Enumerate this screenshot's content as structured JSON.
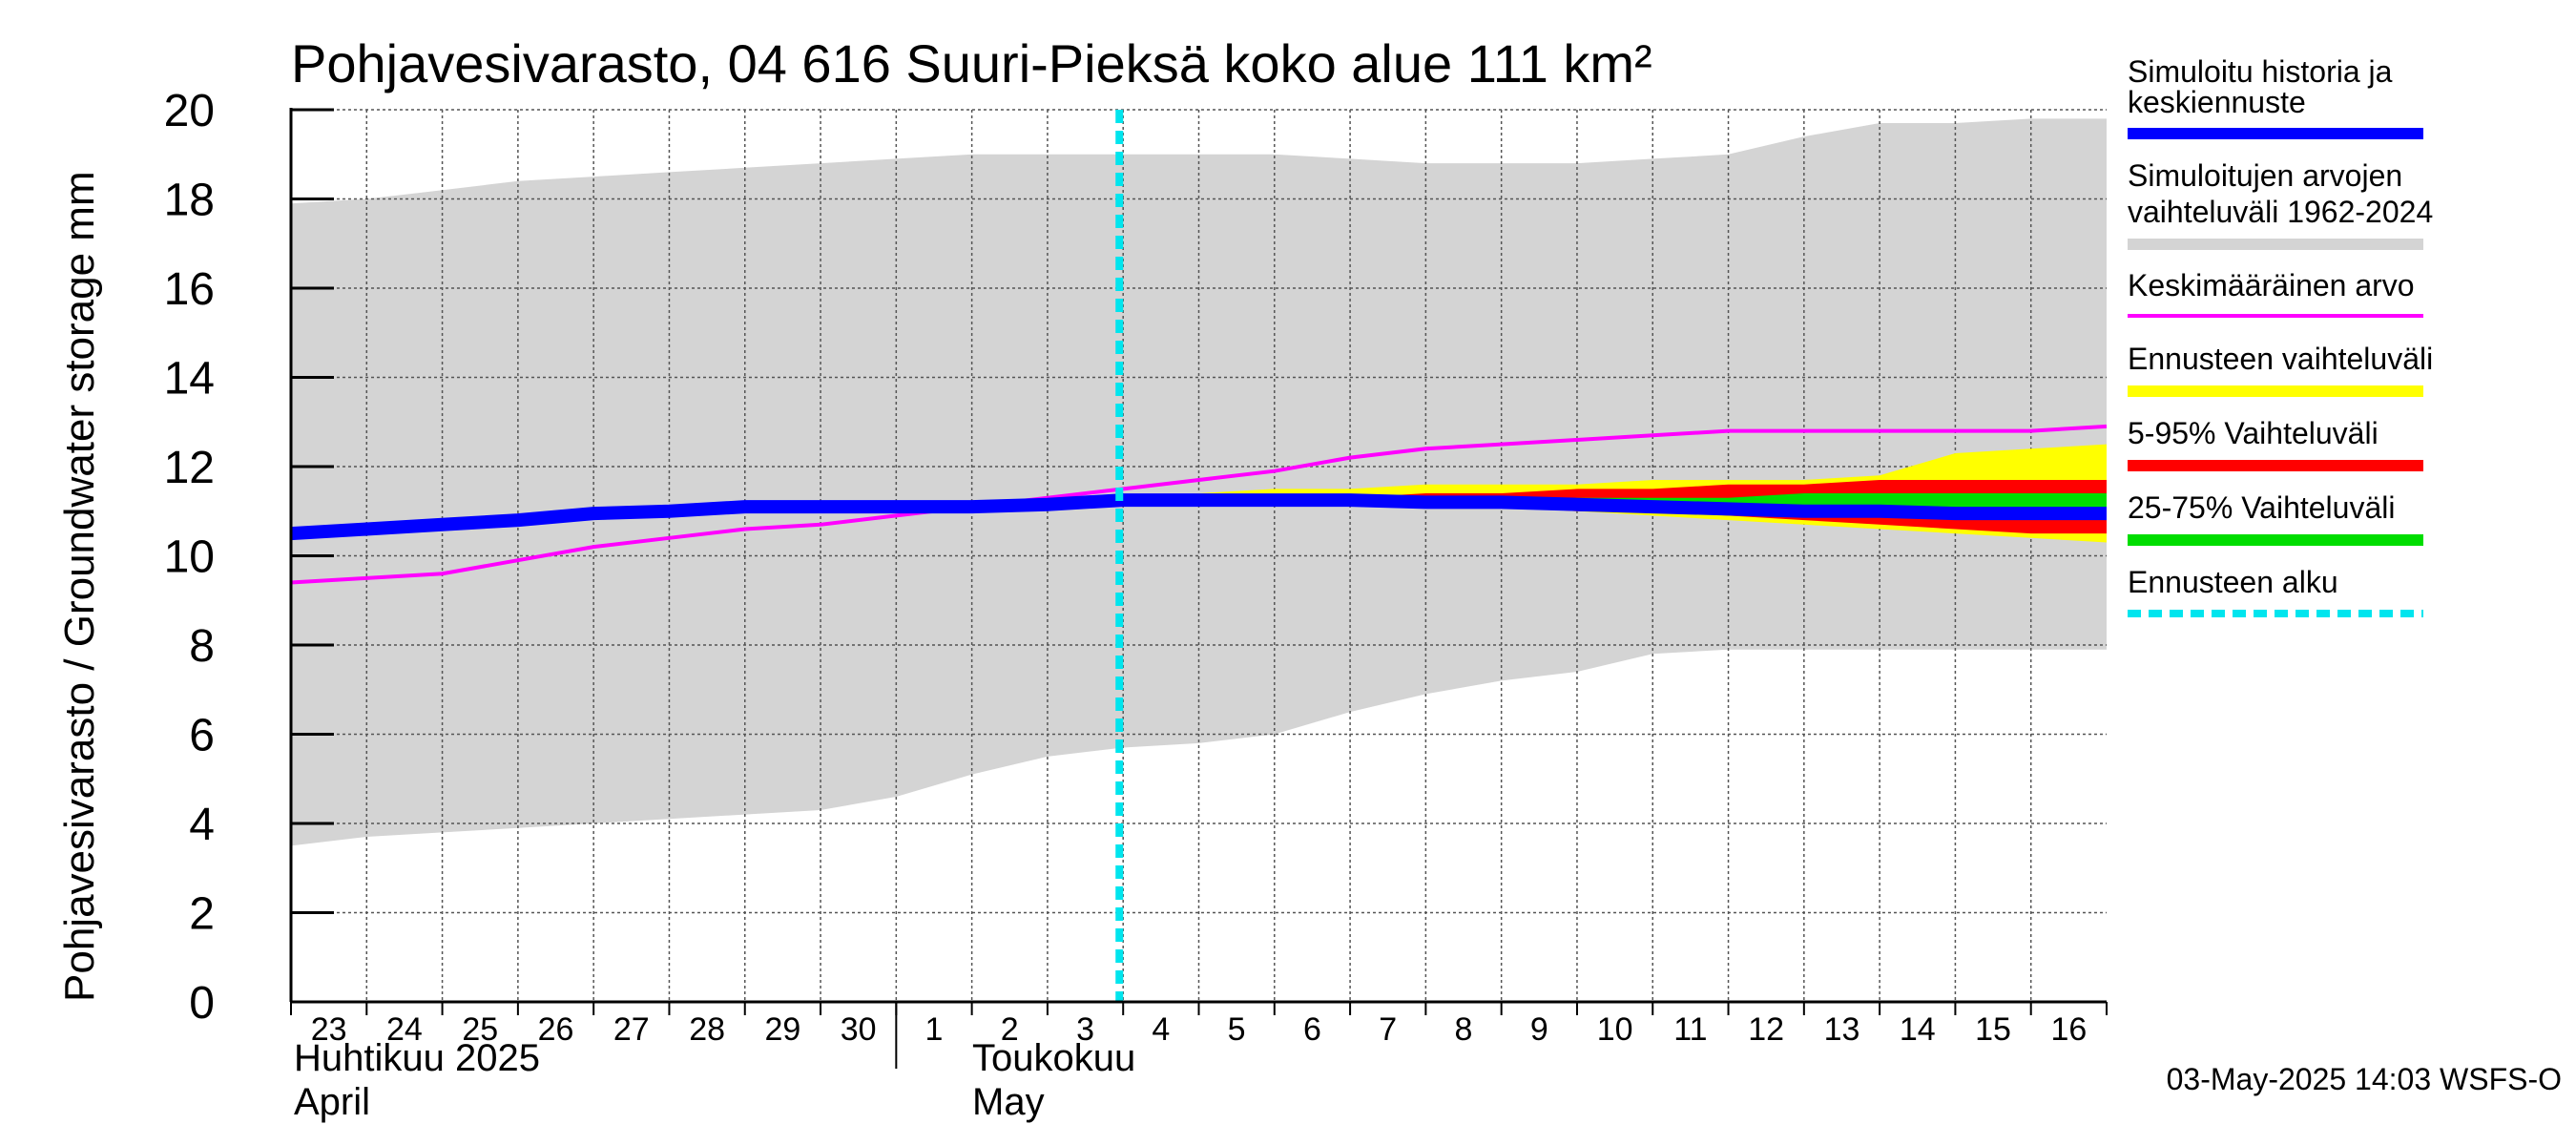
{
  "chart_data": {
    "type": "area",
    "title": "Pohjavesivarasto, 04 616 Suuri-Pieksä koko alue 111 km²",
    "ylabel": "Pohjavesivarasto / Groundwater storage   mm",
    "ylim": [
      0,
      20
    ],
    "yticks": [
      "0",
      "2",
      "4",
      "6",
      "8",
      "10",
      "12",
      "14",
      "16",
      "18",
      "20"
    ],
    "x_day_labels": [
      "23",
      "24",
      "25",
      "26",
      "27",
      "28",
      "29",
      "30",
      "1",
      "2",
      "3",
      "4",
      "5",
      "6",
      "7",
      "8",
      "9",
      "10",
      "11",
      "12",
      "13",
      "14",
      "15",
      "16"
    ],
    "months": [
      {
        "line1": "Huhtikuu  2025",
        "line2": "April"
      },
      {
        "line1": "Toukokuu",
        "line2": "May"
      }
    ],
    "grid": true,
    "colors": {
      "history": "#0000ff",
      "range": "#d4d4d4",
      "mean": "#ff00ff",
      "forecast_range": "#ffff00",
      "p5_95": "#ff0000",
      "p25_75": "#00dd00",
      "forecast_start": "#00e5ee"
    },
    "legend": {
      "placement": "right",
      "items": [
        {
          "key": "history",
          "line1": "Simuloitu historia ja",
          "line2": "keskiennuste"
        },
        {
          "key": "range",
          "line1": "Simuloitujen arvojen",
          "line2": "vaihteluväli 1962-2024"
        },
        {
          "key": "mean",
          "line1": "Keskimääräinen arvo",
          "line2": ""
        },
        {
          "key": "forecast_range",
          "line1": "Ennusteen vaihteluväli",
          "line2": ""
        },
        {
          "key": "p5_95",
          "line1": "5-95% Vaihteluväli",
          "line2": ""
        },
        {
          "key": "p25_75",
          "line1": "25-75% Vaihteluväli",
          "line2": ""
        },
        {
          "key": "forecast_start",
          "line1": "Ennusteen alku",
          "line2": ""
        }
      ]
    },
    "forecast_start_day": 10.95,
    "series": {
      "range": {
        "x": [
          0,
          1,
          2,
          3,
          4,
          5,
          6,
          7,
          8,
          9,
          10,
          11,
          12,
          13,
          14,
          15,
          16,
          17,
          18,
          19,
          20,
          21,
          22,
          23,
          24
        ],
        "upper": [
          17.9,
          18.0,
          18.2,
          18.4,
          18.5,
          18.6,
          18.7,
          18.8,
          18.9,
          19.0,
          19.0,
          19.0,
          19.0,
          19.0,
          18.9,
          18.8,
          18.8,
          18.8,
          18.9,
          19.0,
          19.4,
          19.7,
          19.7,
          19.8,
          19.8
        ],
        "lower": [
          3.5,
          3.7,
          3.8,
          3.9,
          4.0,
          4.1,
          4.2,
          4.3,
          4.6,
          5.1,
          5.5,
          5.7,
          5.8,
          6.0,
          6.5,
          6.9,
          7.2,
          7.4,
          7.8,
          7.9,
          7.9,
          7.9,
          7.9,
          7.9,
          7.9
        ]
      },
      "mean": {
        "x": [
          0,
          1,
          2,
          3,
          4,
          5,
          6,
          7,
          8,
          9,
          10,
          11,
          12,
          13,
          14,
          15,
          16,
          17,
          18,
          19,
          20,
          21,
          22,
          23,
          24
        ],
        "values": [
          9.4,
          9.5,
          9.6,
          9.9,
          10.2,
          10.4,
          10.6,
          10.7,
          10.9,
          11.1,
          11.3,
          11.5,
          11.7,
          11.9,
          12.2,
          12.4,
          12.5,
          12.6,
          12.7,
          12.8,
          12.8,
          12.8,
          12.8,
          12.8,
          12.9
        ]
      },
      "forecast_range": {
        "x": [
          11,
          12,
          13,
          14,
          15,
          16,
          17,
          18,
          19,
          20,
          21,
          22,
          23,
          24
        ],
        "upper": [
          11.3,
          11.4,
          11.5,
          11.5,
          11.6,
          11.6,
          11.6,
          11.7,
          11.7,
          11.7,
          11.8,
          12.3,
          12.4,
          12.5
        ],
        "lower": [
          11.2,
          11.2,
          11.2,
          11.2,
          11.2,
          11.1,
          11.0,
          10.9,
          10.8,
          10.7,
          10.6,
          10.5,
          10.4,
          10.3
        ]
      },
      "p5_95": {
        "x": [
          11,
          12,
          13,
          14,
          15,
          16,
          17,
          18,
          19,
          20,
          21,
          22,
          23,
          24
        ],
        "upper": [
          11.3,
          11.3,
          11.3,
          11.3,
          11.4,
          11.4,
          11.5,
          11.5,
          11.6,
          11.6,
          11.7,
          11.7,
          11.7,
          11.7
        ],
        "lower": [
          11.2,
          11.2,
          11.2,
          11.2,
          11.2,
          11.1,
          11.0,
          11.0,
          10.9,
          10.8,
          10.7,
          10.6,
          10.5,
          10.5
        ]
      },
      "p25_75": {
        "x": [
          11,
          12,
          13,
          14,
          15,
          16,
          17,
          18,
          19,
          20,
          21,
          22,
          23,
          24
        ],
        "upper": [
          11.25,
          11.25,
          11.25,
          11.25,
          11.3,
          11.3,
          11.3,
          11.3,
          11.3,
          11.4,
          11.4,
          11.4,
          11.4,
          11.4
        ],
        "lower": [
          11.2,
          11.2,
          11.2,
          11.2,
          11.2,
          11.15,
          11.1,
          11.05,
          11.0,
          11.0,
          10.95,
          10.9,
          10.9,
          10.9
        ]
      },
      "history": {
        "x": [
          0,
          1,
          2,
          3,
          4,
          5,
          6,
          7,
          8,
          9,
          10,
          11,
          12,
          13,
          14,
          15,
          16,
          17,
          18,
          19,
          20,
          21,
          22,
          23,
          24
        ],
        "values": [
          10.5,
          10.6,
          10.7,
          10.8,
          10.95,
          11.0,
          11.1,
          11.1,
          11.1,
          11.1,
          11.15,
          11.25,
          11.25,
          11.25,
          11.25,
          11.2,
          11.2,
          11.15,
          11.1,
          11.05,
          11.0,
          11.0,
          10.95,
          10.95,
          10.95
        ]
      }
    },
    "footer_stamp": "03-May-2025 14:03 WSFS-O"
  }
}
